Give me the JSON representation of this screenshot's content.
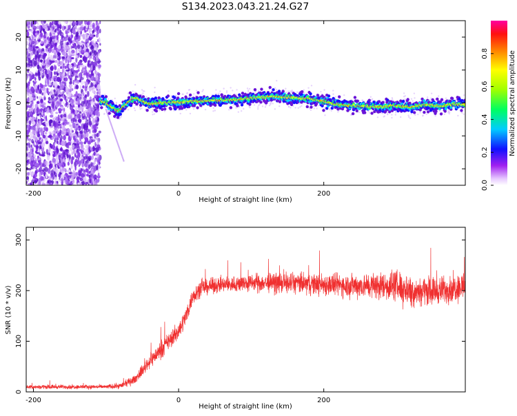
{
  "title": "S134.2023.043.21.24.G27",
  "chart_data": [
    {
      "type": "heatmap",
      "xlabel": "Height of straight line (km)",
      "ylabel": "Frequency (Hz)",
      "xlim": [
        -210,
        395
      ],
      "ylim": [
        -25,
        25
      ],
      "x_ticks": [
        -200,
        0,
        200
      ],
      "y_ticks": [
        -20,
        -10,
        0,
        10,
        20
      ],
      "ridge": {
        "x": [
          -108,
          -100,
          -90,
          -82,
          -75,
          -65,
          -58,
          -50,
          -40,
          -25,
          -10,
          0,
          20,
          50,
          80,
          100,
          130,
          160,
          180,
          200,
          220,
          240,
          260,
          280,
          300,
          320,
          340,
          360,
          380,
          395
        ],
        "y": [
          0.5,
          0.2,
          -1.5,
          -2.5,
          -1.0,
          1.0,
          1.5,
          0.5,
          -0.3,
          0.0,
          0.1,
          0.2,
          0.5,
          0.8,
          1.0,
          1.5,
          2.0,
          1.6,
          1.3,
          0.5,
          -0.5,
          -0.8,
          -1.0,
          -1.2,
          -0.8,
          -1.3,
          -0.5,
          -1.0,
          -0.3,
          -0.5
        ]
      },
      "noise_region": {
        "x_from": -210,
        "x_to": -108
      },
      "colorbar": {
        "label": "Normalized spectral amplitude",
        "range": [
          0,
          1
        ],
        "ticks": [
          "0.0",
          "0.2",
          "0.4",
          "0.6",
          "0.8"
        ]
      }
    },
    {
      "type": "line",
      "xlabel": "Height of straight line (km)",
      "ylabel": "SNR (10 * v/v)",
      "xlim": [
        -210,
        395
      ],
      "ylim": [
        0,
        325
      ],
      "x_ticks": [
        -200,
        0,
        200
      ],
      "y_ticks": [
        0,
        100,
        200,
        300
      ],
      "color": "#f03030",
      "envelope": {
        "x": [
          -210,
          -150,
          -100,
          -80,
          -60,
          -40,
          -20,
          0,
          10,
          20,
          30,
          50,
          100,
          150,
          200,
          250,
          280,
          300,
          320,
          340,
          360,
          380,
          395
        ],
        "mean": [
          10,
          10,
          10,
          12,
          25,
          60,
          90,
          120,
          150,
          190,
          205,
          210,
          215,
          215,
          212,
          210,
          210,
          210,
          200,
          200,
          200,
          205,
          210
        ],
        "spread": [
          6,
          6,
          6,
          8,
          12,
          20,
          25,
          25,
          25,
          25,
          22,
          22,
          25,
          30,
          32,
          35,
          40,
          45,
          45,
          40,
          40,
          40,
          45
        ]
      }
    }
  ]
}
